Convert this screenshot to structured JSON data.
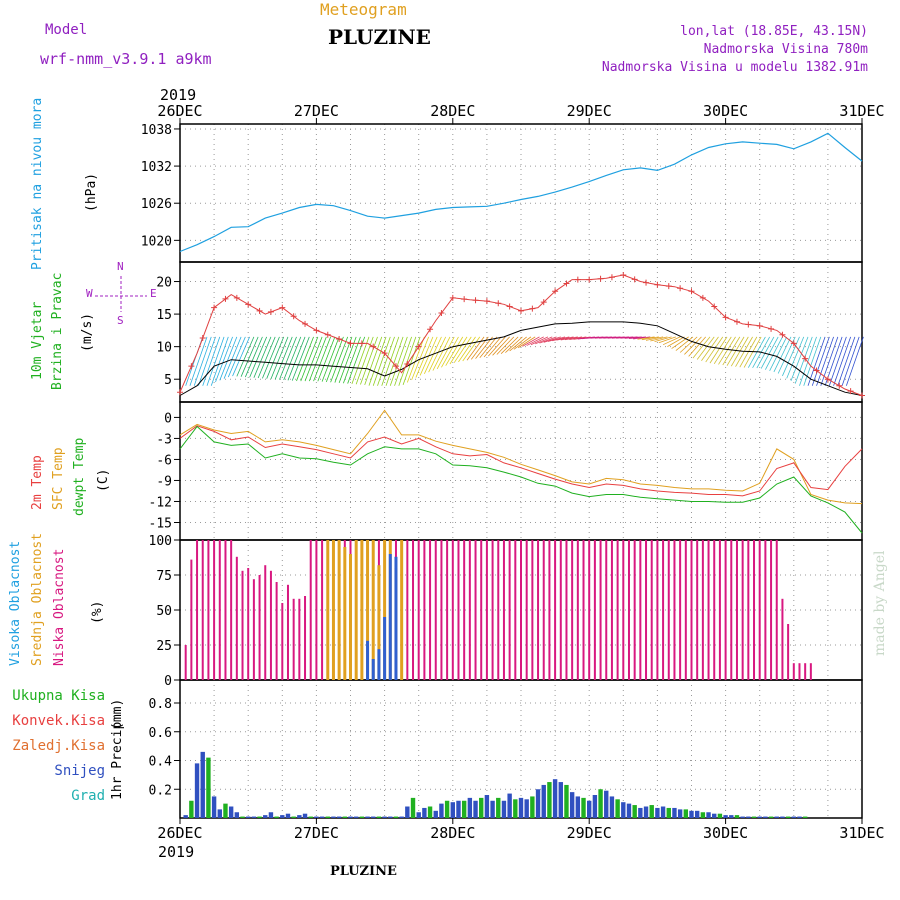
{
  "header": {
    "subtitle": "Meteogram",
    "title": "PLUZINE",
    "model_label": "Model",
    "model_name": "wrf-nmm_v3.9.1  a9km",
    "coords": "lon,lat (18.85E, 43.15N)",
    "elevation": "Nadmorska Visina 780m",
    "model_elevation": "Nadmorska Visina u modelu 1382.91m",
    "year_top": "2019",
    "year_bottom": "2019",
    "footer_title": "PLUZINE",
    "credit": "made by Angel"
  },
  "colors": {
    "pressure": "#1fa0e0",
    "temp2m": "#e84040",
    "sfc": "#e0a020",
    "dewpt": "#20b020",
    "wind_speed": "#000000",
    "wind_gust": "#e04040",
    "cloud_high": "#3060d0",
    "cloud_mid": "#e0a020",
    "cloud_low": "#d81880",
    "prec_total": "#20b020",
    "prec_snow": "#3050c0",
    "compass": "#a020c0"
  },
  "chart_data": {
    "type": "meteogram",
    "x_ticks": [
      "26DEC",
      "27DEC",
      "28DEC",
      "29DEC",
      "30DEC",
      "31DEC"
    ],
    "x_range_hours": [
      0,
      120
    ],
    "panels": [
      {
        "id": "pressure",
        "type": "line",
        "ylabel": "Pritisak na nivou mora",
        "unit": "(hPa)",
        "yticks": [
          1020,
          1026,
          1032,
          1038
        ],
        "ylim": [
          1016.5,
          1038.8
        ],
        "series": [
          {
            "x": [
              0,
              3,
              6,
              9,
              12,
              15,
              18,
              21,
              24,
              27,
              30,
              33,
              36,
              39,
              42,
              45,
              48,
              51,
              54,
              57,
              60,
              63,
              66,
              69,
              72,
              75,
              78,
              81,
              84,
              87,
              90,
              93,
              96,
              99,
              102,
              105,
              108,
              111,
              114,
              117,
              120
            ],
            "y": [
              1018.2,
              1019.3,
              1020.6,
              1022.1,
              1022.2,
              1023.6,
              1024.4,
              1025.3,
              1025.8,
              1025.6,
              1024.8,
              1023.9,
              1023.6,
              1024.0,
              1024.4,
              1025.0,
              1025.3,
              1025.4,
              1025.5,
              1026.0,
              1026.6,
              1027.1,
              1027.8,
              1028.6,
              1029.5,
              1030.5,
              1031.4,
              1031.7,
              1031.3,
              1032.3,
              1033.8,
              1035.0,
              1035.6,
              1035.9,
              1035.7,
              1035.5,
              1034.8,
              1035.9,
              1037.3,
              1035.0,
              1032.8
            ]
          }
        ]
      },
      {
        "id": "wind",
        "type": "line",
        "ylabel": "10m Vjetar",
        "ylabel2": "Brzina i Pravac",
        "unit": "(m/s)",
        "yticks": [
          5,
          10,
          15,
          20
        ],
        "ylim": [
          1.5,
          23
        ],
        "compass": {
          "n": "N",
          "s": "S",
          "e": "E",
          "w": "W"
        },
        "series": [
          {
            "name": "speed",
            "x": [
              0,
              3,
              6,
              9,
              12,
              15,
              18,
              21,
              24,
              27,
              30,
              33,
              36,
              39,
              42,
              45,
              48,
              51,
              54,
              57,
              60,
              63,
              66,
              69,
              72,
              75,
              78,
              81,
              84,
              87,
              90,
              93,
              96,
              99,
              102,
              105,
              108,
              111,
              114,
              117,
              120
            ],
            "y": [
              2.5,
              4,
              7,
              8,
              7.8,
              7.6,
              7.4,
              7.2,
              7.2,
              7,
              6.8,
              6.6,
              5.5,
              6.5,
              8,
              9,
              10,
              10.5,
              11,
              11.5,
              12.5,
              13,
              13.5,
              13.6,
              13.8,
              13.8,
              13.8,
              13.6,
              13.2,
              12,
              10.8,
              10,
              9.6,
              9.3,
              9.2,
              8.5,
              7,
              5,
              4,
              3,
              2.5
            ]
          },
          {
            "name": "gust",
            "x": [
              0,
              3,
              6,
              9,
              12,
              15,
              18,
              21,
              24,
              27,
              30,
              33,
              36,
              39,
              42,
              45,
              48,
              51,
              54,
              57,
              60,
              63,
              66,
              69,
              72,
              75,
              78,
              81,
              84,
              87,
              90,
              93,
              96,
              99,
              102,
              105,
              108,
              111,
              114,
              117,
              120
            ],
            "y": [
              3,
              9,
              16,
              18,
              16.5,
              15,
              16,
              14,
              12.5,
              11.5,
              10.5,
              10.5,
              9,
              6,
              10,
              14,
              17.5,
              17.2,
              17,
              16.5,
              15.5,
              16,
              18.5,
              20.3,
              20.3,
              20.5,
              21,
              20,
              19.5,
              19.2,
              18.5,
              17,
              14.5,
              13.5,
              13.2,
              12.5,
              10.5,
              7,
              5,
              3.5,
              2.5
            ]
          }
        ]
      },
      {
        "id": "temperature",
        "type": "line",
        "ylabel": "2m Temp",
        "ylabel2": "SFC Temp",
        "ylabel3": "dewpt Temp",
        "unit": "(C)",
        "yticks": [
          0,
          -3,
          -6,
          -9,
          -12,
          -15
        ],
        "ylim": [
          -17.5,
          2.2
        ],
        "series": [
          {
            "name": "2m Temp",
            "x": [
              0,
              3,
              6,
              9,
              12,
              15,
              18,
              21,
              24,
              27,
              30,
              33,
              36,
              39,
              42,
              45,
              48,
              51,
              54,
              57,
              60,
              63,
              66,
              69,
              72,
              75,
              78,
              81,
              84,
              87,
              90,
              93,
              96,
              99,
              102,
              105,
              108,
              111,
              114,
              117,
              120
            ],
            "y": [
              -3,
              -1.2,
              -2,
              -3.2,
              -2.8,
              -4.3,
              -3.8,
              -4.2,
              -4.6,
              -5.2,
              -5.8,
              -3.5,
              -2.8,
              -3.8,
              -3,
              -4.2,
              -5.2,
              -5.5,
              -5.3,
              -6.5,
              -7.2,
              -8,
              -8.8,
              -9.5,
              -10,
              -9.5,
              -9.7,
              -10.2,
              -10.5,
              -10.7,
              -10.8,
              -11,
              -11,
              -11.2,
              -10.5,
              -7.3,
              -6.5,
              -10,
              -10.3,
              -7,
              -4.5
            ]
          },
          {
            "name": "SFC Temp",
            "x": [
              0,
              3,
              6,
              9,
              12,
              15,
              18,
              21,
              24,
              27,
              30,
              33,
              36,
              39,
              42,
              45,
              48,
              51,
              54,
              57,
              60,
              63,
              66,
              69,
              72,
              75,
              78,
              81,
              84,
              87,
              90,
              93,
              96,
              99,
              102,
              105,
              108,
              111,
              114,
              117,
              120
            ],
            "y": [
              -2.5,
              -1,
              -1.8,
              -2.3,
              -2,
              -3.5,
              -3.2,
              -3.5,
              -4,
              -4.6,
              -5.2,
              -2.3,
              1,
              -2.5,
              -2.5,
              -3.4,
              -4,
              -4.5,
              -5,
              -5.7,
              -6.7,
              -7.5,
              -8.3,
              -9.2,
              -9.5,
              -8.7,
              -8.9,
              -9.5,
              -9.7,
              -10,
              -10.2,
              -10.2,
              -10.4,
              -10.5,
              -9.4,
              -4.5,
              -6,
              -11,
              -11.8,
              -12.2,
              -12.3
            ]
          },
          {
            "name": "dewpt Temp",
            "x": [
              0,
              3,
              6,
              9,
              12,
              15,
              18,
              21,
              24,
              27,
              30,
              33,
              36,
              39,
              42,
              45,
              48,
              51,
              54,
              57,
              60,
              63,
              66,
              69,
              72,
              75,
              78,
              81,
              84,
              87,
              90,
              93,
              96,
              99,
              102,
              105,
              108,
              111,
              114,
              117,
              120
            ],
            "y": [
              -4.5,
              -1.3,
              -3.5,
              -4,
              -3.8,
              -5.8,
              -5.2,
              -5.8,
              -5.9,
              -6.4,
              -6.8,
              -5.2,
              -4.2,
              -4.5,
              -4.5,
              -5.2,
              -6.8,
              -6.9,
              -7.2,
              -7.8,
              -8.5,
              -9.4,
              -9.8,
              -10.8,
              -11.3,
              -11,
              -11,
              -11.4,
              -11.6,
              -11.8,
              -12,
              -12,
              -12.1,
              -12.1,
              -11.5,
              -9.5,
              -8.5,
              -11.2,
              -12.2,
              -13.5,
              -16.5
            ]
          }
        ]
      },
      {
        "id": "cloud",
        "type": "bar",
        "ylabel": "Visoka Oblacnost",
        "ylabel2": "Srednja Oblacnost",
        "ylabel3": "Niska Oblacnost",
        "unit": "(%)",
        "yticks": [
          0,
          25,
          50,
          75,
          100
        ],
        "ylim": [
          0,
          100
        ],
        "series": [
          {
            "name": "Niska Oblacnost",
            "x_start": 1,
            "x_step": 1,
            "values": [
              25,
              86,
              100,
              100,
              100,
              100,
              100,
              100,
              100,
              88,
              78,
              80,
              72,
              75,
              82,
              78,
              70,
              55,
              68,
              58,
              58,
              60,
              100,
              100,
              100,
              100,
              68,
              100,
              100,
              100,
              100,
              100,
              100,
              100,
              100,
              100,
              100,
              100,
              100,
              100,
              100,
              100,
              100,
              100,
              100,
              100,
              100,
              100,
              100,
              100,
              100,
              100,
              100,
              100,
              100,
              100,
              100,
              100,
              100,
              100,
              100,
              100,
              100,
              100,
              100,
              100,
              100,
              100,
              100,
              100,
              100,
              100,
              100,
              100,
              100,
              100,
              100,
              100,
              100,
              100,
              100,
              100,
              100,
              100,
              100,
              100,
              100,
              100,
              100,
              100,
              100,
              100,
              100,
              100,
              100,
              100,
              100,
              100,
              100,
              100,
              100,
              100,
              100,
              100,
              100,
              58,
              40,
              12,
              12,
              12,
              12
            ]
          },
          {
            "name": "Srednja Oblacnost",
            "x_start": 26,
            "x_step": 1,
            "values": [
              100,
              100,
              100,
              95,
              90,
              100,
              100,
              100,
              100,
              82,
              100,
              100,
              80,
              100
            ]
          },
          {
            "name": "Visoka Oblacnost",
            "x_start": 33,
            "x_step": 1,
            "values": [
              28,
              15,
              22,
              45,
              90,
              88
            ]
          }
        ]
      },
      {
        "id": "precip",
        "type": "bar",
        "ylabel": "1hr Precip",
        "unit": "(mm)",
        "yticks": [
          0.2,
          0.4,
          0.6,
          0.8
        ],
        "ylim": [
          0,
          0.96
        ],
        "legend": [
          "Ukupna Kisa",
          "Konvek.Kisa",
          "Zaledj.Kisa",
          "Snijeg",
          "Grad"
        ],
        "series": [
          {
            "name": "Ukupna Kisa",
            "x_start": 1,
            "x_step": 1,
            "values": [
              0.02,
              0.12,
              0.38,
              0.46,
              0.42,
              0.15,
              0.06,
              0.1,
              0.08,
              0.04,
              0.01,
              0.01,
              0.01,
              0.01,
              0.02,
              0.04,
              0.01,
              0.02,
              0.03,
              0.01,
              0.02,
              0.03,
              0.01,
              0.01,
              0.01,
              0.01,
              0.01,
              0.01,
              0.01,
              0.01,
              0.01,
              0.01,
              0.01,
              0.01,
              0.01,
              0.01,
              0.01,
              0.01,
              0.01,
              0.08,
              0.14,
              0.04,
              0.07,
              0.08,
              0.05,
              0.1,
              0.12,
              0.11,
              0.12,
              0.12,
              0.14,
              0.12,
              0.14,
              0.16,
              0.12,
              0.14,
              0.12,
              0.17,
              0.13,
              0.14,
              0.13,
              0.15,
              0.2,
              0.23,
              0.25,
              0.27,
              0.25,
              0.23,
              0.18,
              0.15,
              0.14,
              0.12,
              0.16,
              0.2,
              0.19,
              0.15,
              0.13,
              0.11,
              0.1,
              0.09,
              0.07,
              0.08,
              0.09,
              0.07,
              0.08,
              0.07,
              0.07,
              0.06,
              0.06,
              0.05,
              0.05,
              0.04,
              0.04,
              0.03,
              0.03,
              0.02,
              0.02,
              0.02,
              0.01,
              0.01,
              0.01,
              0.01,
              0.01,
              0.01,
              0.01,
              0.01,
              0.01,
              0.01,
              0.01,
              0.01
            ]
          }
        ]
      }
    ]
  }
}
